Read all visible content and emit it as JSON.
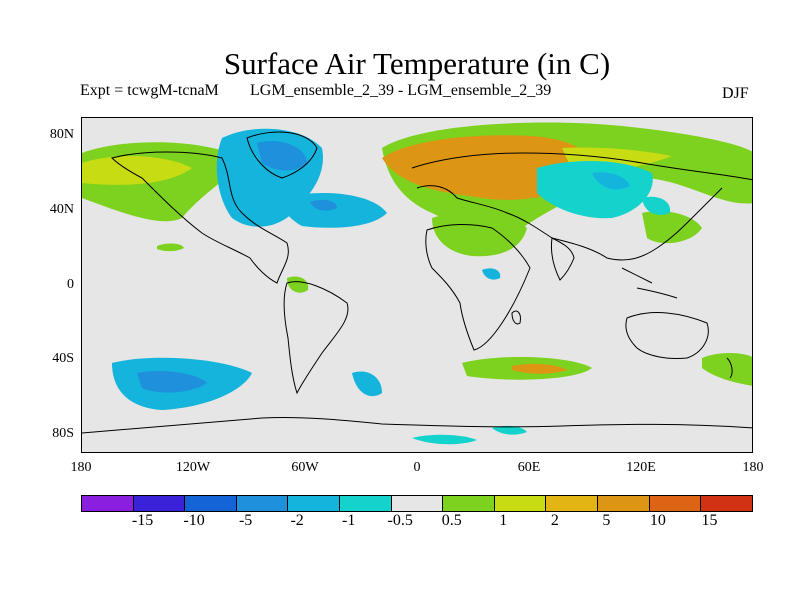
{
  "title": "Surface Air Temperature (in C)",
  "expt_label": "Expt = tcwgM-tcnaM",
  "runs_label": "LGM_ensemble_2_39 - LGM_ensemble_2_39",
  "season": "DJF",
  "lat_ticks": [
    "80N",
    "40N",
    "0",
    "40S",
    "80S"
  ],
  "lon_ticks": [
    "180",
    "120W",
    "60W",
    "0",
    "60E",
    "120E",
    "180"
  ],
  "colorbar": {
    "colors": [
      "#8a1fe0",
      "#3a22d8",
      "#1464d8",
      "#1e90dc",
      "#14b4dc",
      "#14d2cc",
      "#e6e6e6",
      "#7cd21e",
      "#c8dc14",
      "#e2b414",
      "#dc9614",
      "#dc6414",
      "#d23214"
    ],
    "labels": [
      "-15",
      "-10",
      "-5",
      "-2",
      "-1",
      "-0.5",
      "0.5",
      "1",
      "2",
      "5",
      "10",
      "15"
    ]
  },
  "chart_data": {
    "type": "heatmap",
    "title": "Surface Air Temperature (in C)",
    "subtitle": "Expt = tcwgM-tcnaM  LGM_ensemble_2_39 - LGM_ensemble_2_39",
    "season": "DJF",
    "lon_range": [
      -180,
      180
    ],
    "lat_range": [
      -90,
      90
    ],
    "levels": [
      -15,
      -10,
      -5,
      -2,
      -1,
      -0.5,
      0.5,
      1,
      2,
      5,
      10,
      15
    ]
  }
}
